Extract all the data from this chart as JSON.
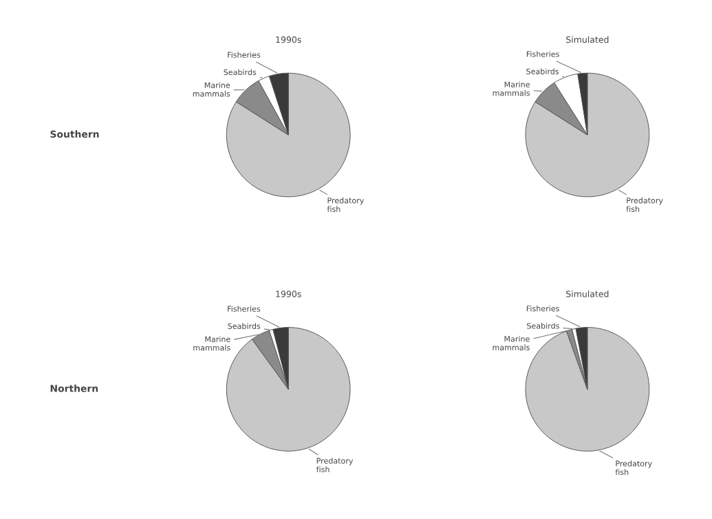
{
  "chart_data": [
    {
      "type": "pie",
      "title": "1990s",
      "annotations": [
        "Southern"
      ],
      "categories": [
        "Predatory\nfish",
        "Marine\nmammals",
        "Seabirds",
        "Fisheries"
      ],
      "values": [
        84,
        8,
        3,
        5
      ],
      "colors": [
        "#c8c8c8",
        "#8a8a8a",
        "#ffffff",
        "#3a3a3a"
      ]
    },
    {
      "type": "pie",
      "title": "Simulated",
      "categories": [
        "Predatory\nfish",
        "Marine\nmammals",
        "Seabirds",
        "Fisheries"
      ],
      "values": [
        84,
        7,
        6.5,
        2.5
      ],
      "colors": [
        "#c8c8c8",
        "#8a8a8a",
        "#ffffff",
        "#3a3a3a"
      ]
    },
    {
      "type": "pie",
      "title": "1990s",
      "annotations": [
        "Northern"
      ],
      "categories": [
        "Predatory\nfish",
        "Marine\nmammals",
        "Seabirds",
        "Fisheries"
      ],
      "values": [
        90,
        5,
        1,
        4
      ],
      "colors": [
        "#c8c8c8",
        "#8a8a8a",
        "#ffffff",
        "#3a3a3a"
      ]
    },
    {
      "type": "pie",
      "title": "Simulated",
      "categories": [
        "Predatory\nfish",
        "Marine\nmammals",
        "Seabirds",
        "Fisheries"
      ],
      "values": [
        94.5,
        1.5,
        1,
        3
      ],
      "colors": [
        "#c8c8c8",
        "#8a8a8a",
        "#ffffff",
        "#3a3a3a"
      ]
    }
  ]
}
